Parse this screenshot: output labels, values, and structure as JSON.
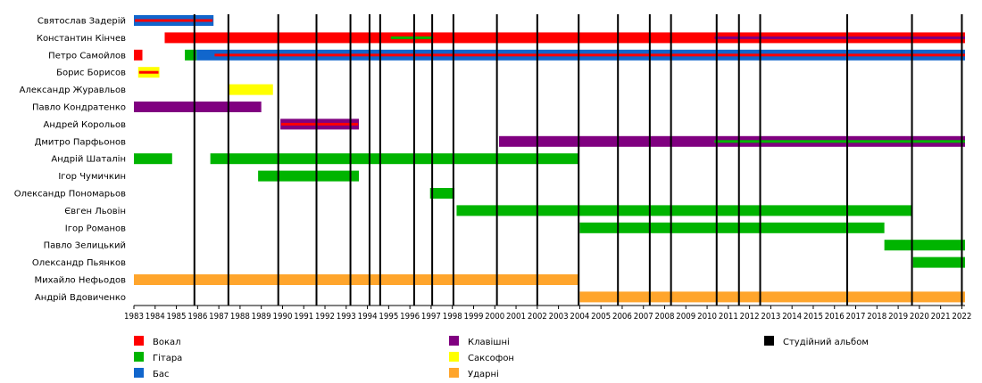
{
  "chart_data": {
    "type": "timeline",
    "title": "",
    "xlabel": "",
    "ylabel": "",
    "x_range": [
      1983,
      2022.15
    ],
    "tick_years": [
      1983,
      1984,
      1985,
      1986,
      1987,
      1988,
      1989,
      1990,
      1991,
      1992,
      1993,
      1994,
      1995,
      1996,
      1997,
      1998,
      1999,
      2000,
      2001,
      2002,
      2003,
      2004,
      2005,
      2006,
      2007,
      2008,
      2009,
      2010,
      2011,
      2012,
      2013,
      2014,
      2015,
      2016,
      2017,
      2018,
      2019,
      2020,
      2021,
      2022
    ],
    "roles": {
      "vocal": {
        "label": "Вокал",
        "color": "#ff0000"
      },
      "guitar": {
        "label": "Гітара",
        "color": "#00b400"
      },
      "bass": {
        "label": "Бас",
        "color": "#1166cc"
      },
      "keys": {
        "label": "Клавішні",
        "color": "#800080"
      },
      "sax": {
        "label": "Саксофон",
        "color": "#ffff00"
      },
      "drums": {
        "label": "Ударні",
        "color": "#ffa52c"
      },
      "album": {
        "label": "Студійний альбом",
        "color": "#000000"
      }
    },
    "legend": [
      {
        "role": "vocal",
        "label": "Вокал"
      },
      {
        "role": "guitar",
        "label": "Гітара"
      },
      {
        "role": "bass",
        "label": "Бас"
      },
      {
        "role": "keys",
        "label": "Клавішні"
      },
      {
        "role": "sax",
        "label": "Саксофон"
      },
      {
        "role": "drums",
        "label": "Ударні"
      },
      {
        "role": "album",
        "label": "Студійний альбом"
      }
    ],
    "albums": [
      1985.85,
      1987.45,
      1989.8,
      1991.6,
      1993.2,
      1994.1,
      1994.6,
      1996.2,
      1997.05,
      1998.05,
      2000.1,
      2002.0,
      2003.95,
      2005.8,
      2007.3,
      2008.3,
      2010.45,
      2011.5,
      2012.5,
      2016.6,
      2019.65,
      2022.0
    ],
    "members": [
      {
        "name": "Святослав Задерій",
        "bars": [
          {
            "role": "bass",
            "start": 1983.0,
            "end": 1986.75,
            "over": "vocal"
          }
        ]
      },
      {
        "name": "Константин Кінчев",
        "bars": [
          {
            "role": "vocal",
            "start": 1984.45,
            "end": 2022.15
          },
          {
            "role": "guitar",
            "start": 1995.1,
            "end": 1997.1,
            "inner": true
          },
          {
            "role": "keys",
            "start": 2010.35,
            "end": 2022.15,
            "inner": true
          }
        ]
      },
      {
        "name": "Петро Самойлов",
        "bars": [
          {
            "role": "vocal",
            "start": 1983.0,
            "end": 1983.4
          },
          {
            "role": "guitar",
            "start": 1985.4,
            "end": 1985.95
          },
          {
            "role": "bass",
            "start": 1985.95,
            "end": 2022.15
          },
          {
            "role": "vocal",
            "start": 1986.8,
            "end": 2022.15,
            "inner": true
          }
        ]
      },
      {
        "name": "Борис Борисов",
        "bars": [
          {
            "role": "sax",
            "start": 1983.2,
            "end": 1984.2,
            "over": "vocal"
          }
        ]
      },
      {
        "name": "Александр Журавльов",
        "bars": [
          {
            "role": "sax",
            "start": 1987.45,
            "end": 1989.55
          }
        ]
      },
      {
        "name": "Павло Кондратенко",
        "bars": [
          {
            "role": "keys",
            "start": 1983.0,
            "end": 1989.0
          }
        ]
      },
      {
        "name": "Андрей Корольов",
        "bars": [
          {
            "role": "keys",
            "start": 1989.9,
            "end": 1993.6,
            "over": "vocal"
          }
        ]
      },
      {
        "name": "Дмитро Парфьонов",
        "bars": [
          {
            "role": "keys",
            "start": 2000.2,
            "end": 2022.15
          },
          {
            "role": "guitar",
            "start": 2010.35,
            "end": 2022.15,
            "inner": true
          }
        ]
      },
      {
        "name": "Андрій Шаталін",
        "bars": [
          {
            "role": "guitar",
            "start": 1983.0,
            "end": 1984.8
          },
          {
            "role": "guitar",
            "start": 1986.6,
            "end": 2003.95
          }
        ]
      },
      {
        "name": "Ігор Чумичкин",
        "bars": [
          {
            "role": "guitar",
            "start": 1988.85,
            "end": 1993.6
          }
        ]
      },
      {
        "name": "Олександр Пономарьов",
        "bars": [
          {
            "role": "guitar",
            "start": 1996.95,
            "end": 1998.1
          }
        ]
      },
      {
        "name": "Євген Льовін",
        "bars": [
          {
            "role": "guitar",
            "start": 1998.2,
            "end": 2019.65
          }
        ]
      },
      {
        "name": "Ігор Романов",
        "bars": [
          {
            "role": "guitar",
            "start": 2004.0,
            "end": 2018.35
          }
        ]
      },
      {
        "name": "Павло Зелицький",
        "bars": [
          {
            "role": "guitar",
            "start": 2018.35,
            "end": 2022.15
          }
        ]
      },
      {
        "name": "Олександр Пьянков",
        "bars": [
          {
            "role": "guitar",
            "start": 2019.7,
            "end": 2022.15
          }
        ]
      },
      {
        "name": "Михайло Нефьодов",
        "bars": [
          {
            "role": "drums",
            "start": 1983.0,
            "end": 2003.95
          }
        ]
      },
      {
        "name": "Андрій Вдовиченко",
        "bars": [
          {
            "role": "drums",
            "start": 2004.0,
            "end": 2022.15
          }
        ]
      }
    ]
  }
}
